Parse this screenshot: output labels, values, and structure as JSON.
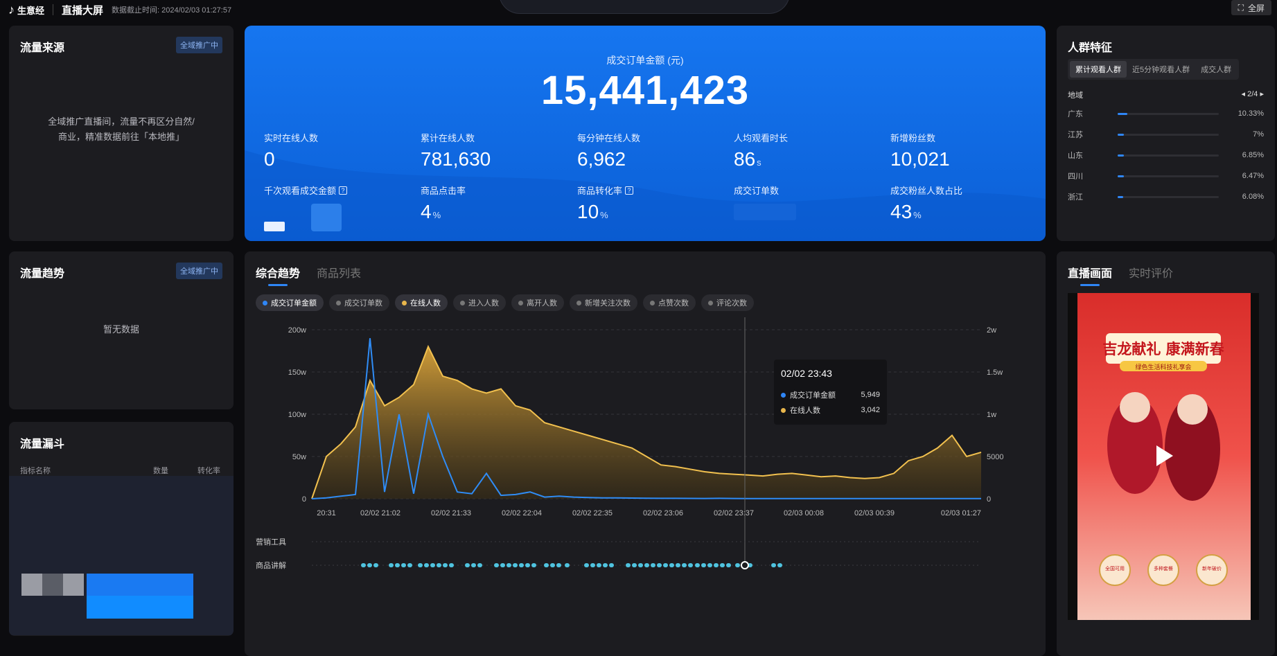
{
  "topbar": {
    "logo_text": "生意经",
    "logo_sub": "抖音生意经",
    "title": "直播大屏",
    "deadline_label": "数据截止时间:",
    "deadline_value": "2024/02/03 01:27:57",
    "fullscreen_label": "全屏"
  },
  "traffic_source": {
    "title": "流量来源",
    "badge": "全域推广中",
    "message_line1": "全域推广直播间，流量不再区分自然/",
    "message_line2": "商业，精准数据前往「本地推」"
  },
  "traffic_trend": {
    "title": "流量趋势",
    "badge": "全域推广中",
    "empty": "暂无数据"
  },
  "funnel": {
    "title": "流量漏斗",
    "col_name": "指标名称",
    "col_count": "数量",
    "col_rate": "转化率"
  },
  "kpi": {
    "main_label": "成交订单金额 (元)",
    "main_value": "15,441,423",
    "items": [
      {
        "label": "实时在线人数",
        "value": "0",
        "unit": ""
      },
      {
        "label": "累计在线人数",
        "value": "781,630",
        "unit": ""
      },
      {
        "label": "每分钟在线人数",
        "value": "6,962",
        "unit": ""
      },
      {
        "label": "人均观看时长",
        "value": "86",
        "unit": "s"
      },
      {
        "label": "新增粉丝数",
        "value": "10,021",
        "unit": ""
      },
      {
        "label": "千次观看成交金额",
        "value": "",
        "unit": "",
        "help": "?"
      },
      {
        "label": "商品点击率",
        "value": "4",
        "unit": "%"
      },
      {
        "label": "商品转化率",
        "value": "10",
        "unit": "%",
        "help": "?"
      },
      {
        "label": "成交订单数",
        "value": "",
        "unit": ""
      },
      {
        "label": "成交粉丝人数占比",
        "value": "43",
        "unit": "%"
      }
    ]
  },
  "audience": {
    "title": "人群特征",
    "tabs": [
      "累计观看人群",
      "近5分钟观看人群",
      "成交人群"
    ],
    "region_label": "地域",
    "pager": "2/4",
    "regions": [
      {
        "name": "广东",
        "pct": "10.33%",
        "ratio": 0.1033
      },
      {
        "name": "江苏",
        "pct": "7%",
        "ratio": 0.07
      },
      {
        "name": "山东",
        "pct": "6.85%",
        "ratio": 0.0685
      },
      {
        "name": "四川",
        "pct": "6.47%",
        "ratio": 0.0647
      },
      {
        "name": "浙江",
        "pct": "6.08%",
        "ratio": 0.0608
      }
    ]
  },
  "trend": {
    "tabs": [
      "综合趋势",
      "商品列表"
    ],
    "chips": [
      {
        "label": "成交订单金额",
        "color": "#2f86f6",
        "on": true
      },
      {
        "label": "成交订单数",
        "color": "#777777",
        "on": false
      },
      {
        "label": "在线人数",
        "color": "#e8b64c",
        "on": true
      },
      {
        "label": "进入人数",
        "color": "#777777",
        "on": false
      },
      {
        "label": "离开人数",
        "color": "#777777",
        "on": false
      },
      {
        "label": "新增关注次数",
        "color": "#777777",
        "on": false
      },
      {
        "label": "点赞次数",
        "color": "#777777",
        "on": false
      },
      {
        "label": "评论次数",
        "color": "#777777",
        "on": false
      }
    ],
    "row_labels": [
      "营销工具",
      "商品讲解"
    ],
    "tooltip": {
      "time": "02/02 23:43",
      "rows": [
        {
          "label": "成交订单金额",
          "value": "5,949",
          "color": "#2f86f6"
        },
        {
          "label": "在线人数",
          "value": "3,042",
          "color": "#e8b64c"
        }
      ]
    }
  },
  "chart_data": {
    "type": "area",
    "x_labels": [
      "20:31",
      "02/02 21:02",
      "02/02 21:33",
      "02/02 22:04",
      "02/02 22:35",
      "02/02 23:06",
      "02/02 23:37",
      "02/03 00:08",
      "02/03 00:39",
      "02/03 01:27"
    ],
    "y_left_ticks": [
      "0",
      "50w",
      "100w",
      "150w",
      "200w"
    ],
    "y_right_ticks": [
      "0",
      "5000",
      "1w",
      "1.5w",
      "2w"
    ],
    "ylim_left": [
      0,
      2000000
    ],
    "ylim_right": [
      0,
      20000
    ],
    "series": [
      {
        "name": "在线人数",
        "axis": "right",
        "color": "#e8b64c",
        "values": [
          0,
          5000,
          6500,
          8500,
          14000,
          11000,
          12000,
          13500,
          18000,
          14500,
          14000,
          13000,
          12500,
          13000,
          11000,
          10500,
          9000,
          8500,
          8000,
          7500,
          7000,
          6500,
          6000,
          5000,
          4000,
          3800,
          3500,
          3200,
          3000,
          2900,
          2800,
          2700,
          2900,
          3000,
          2800,
          2600,
          2700,
          2500,
          2400,
          2500,
          3000,
          4500,
          5000,
          6000,
          7500,
          5000,
          5500
        ]
      },
      {
        "name": "成交订单金额",
        "axis": "left",
        "color": "#2f86f6",
        "values": [
          0,
          10000,
          30000,
          50000,
          1900000,
          80000,
          1000000,
          60000,
          1000000,
          500000,
          80000,
          60000,
          300000,
          40000,
          50000,
          80000,
          20000,
          30000,
          20000,
          15000,
          10000,
          10000,
          8000,
          6000,
          5000,
          5000,
          4000,
          3000,
          5000,
          3000,
          2000,
          2000,
          2000,
          2000,
          2000,
          2000,
          2000,
          2000,
          2000,
          2000,
          2000,
          2000,
          2000,
          2000,
          2000,
          2000,
          2000
        ]
      }
    ]
  },
  "live": {
    "tabs": [
      "直播画面",
      "实时评价"
    ],
    "poster_title": "吉龙献礼 康满新春",
    "poster_sub": "绿色生活科技礼享会",
    "circles": [
      "全国可用",
      "多种套餐",
      "新年破价"
    ]
  }
}
